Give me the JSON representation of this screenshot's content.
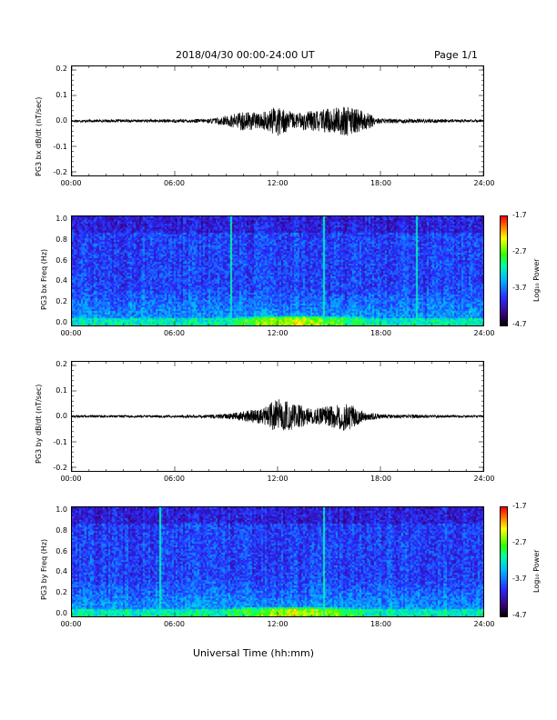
{
  "header": {
    "title": "2018/04/30   00:00-24:00 UT",
    "page": "Page 1/1"
  },
  "xaxis_title": "Universal Time (hh:mm)",
  "chart_data": [
    {
      "type": "line",
      "ylabel": "PG3 bx dB/dt (nT/sec)",
      "xlim": [
        "00:00",
        "24:00"
      ],
      "ylim": [
        -0.2,
        0.2
      ],
      "xticks": [
        "00:00",
        "06:00",
        "12:00",
        "18:00",
        "24:00"
      ],
      "yticks": [
        "0.2",
        "0.1",
        "0.0",
        "-0.1",
        "-0.2"
      ],
      "color": "#000000",
      "envelope_hours": [
        0,
        6,
        8,
        9,
        10,
        11,
        12,
        13,
        14,
        15,
        16,
        17,
        18,
        24
      ],
      "envelope_amplitude": [
        0.005,
        0.006,
        0.008,
        0.02,
        0.04,
        0.03,
        0.06,
        0.03,
        0.04,
        0.05,
        0.06,
        0.04,
        0.01,
        0.005
      ]
    },
    {
      "type": "heatmap",
      "ylabel": "PG3 bx Freq (Hz)",
      "xlim": [
        "00:00",
        "24:00"
      ],
      "ylim": [
        0.0,
        1.0
      ],
      "xticks": [
        "00:00",
        "06:00",
        "12:00",
        "18:00",
        "24:00"
      ],
      "yticks": [
        "1.0",
        "0.8",
        "0.6",
        "0.4",
        "0.2",
        "0.0"
      ],
      "colorbar": {
        "label": "Log₁₀ Power",
        "ticks": [
          "-1.7",
          "-2.7",
          "-3.7",
          "-4.7"
        ]
      },
      "bright_lines_hours": [
        9.2,
        14.7,
        20.1
      ],
      "low_freq_enhancement_hours": [
        9,
        17
      ]
    },
    {
      "type": "line",
      "ylabel": "PG3 by dB/dt (nT/sec)",
      "xlim": [
        "00:00",
        "24:00"
      ],
      "ylim": [
        -0.2,
        0.2
      ],
      "xticks": [
        "00:00",
        "06:00",
        "12:00",
        "18:00",
        "24:00"
      ],
      "yticks": [
        "0.2",
        "0.1",
        "0.0",
        "-0.1",
        "-0.2"
      ],
      "color": "#000000",
      "envelope_hours": [
        0,
        6,
        8,
        9,
        10,
        11,
        12,
        13,
        14,
        15,
        16,
        17,
        18,
        24
      ],
      "envelope_amplitude": [
        0.004,
        0.005,
        0.006,
        0.01,
        0.02,
        0.03,
        0.07,
        0.05,
        0.03,
        0.04,
        0.06,
        0.02,
        0.008,
        0.004
      ]
    },
    {
      "type": "heatmap",
      "ylabel": "PG3 by Freq (Hz)",
      "xlim": [
        "00:00",
        "24:00"
      ],
      "ylim": [
        0.0,
        1.0
      ],
      "xticks": [
        "00:00",
        "06:00",
        "12:00",
        "18:00",
        "24:00"
      ],
      "yticks": [
        "1.0",
        "0.8",
        "0.6",
        "0.4",
        "0.2",
        "0.0"
      ],
      "colorbar": {
        "label": "Log₁₀ Power",
        "ticks": [
          "-1.7",
          "-2.7",
          "-3.7",
          "-4.7"
        ]
      },
      "bright_lines_hours": [
        5.1,
        14.7
      ],
      "low_freq_enhancement_hours": [
        9,
        17
      ]
    }
  ]
}
